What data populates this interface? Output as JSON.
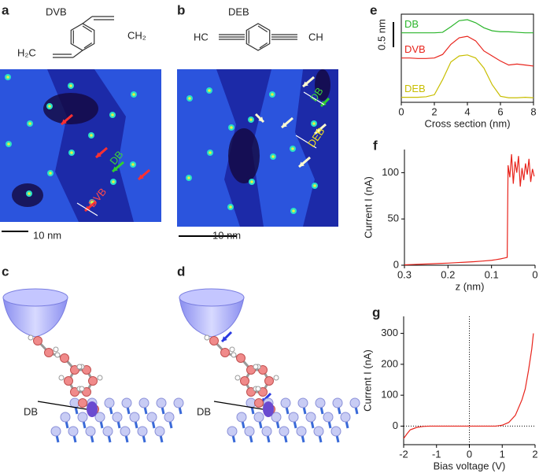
{
  "panels": {
    "a": {
      "letter": "a",
      "label": "DVB",
      "formula_left": "H₂C",
      "formula_right": "CH₂",
      "scale_bar": "10 nm",
      "annotations": [
        "DB",
        "DVB"
      ]
    },
    "b": {
      "letter": "b",
      "label": "DEB",
      "formula_left": "HC",
      "formula_right": "CH",
      "scale_bar": "10 nm",
      "annotations": [
        "DB",
        "DEB"
      ]
    },
    "c": {
      "letter": "c",
      "annotation": "DB"
    },
    "d": {
      "letter": "d",
      "annotation": "DB"
    }
  },
  "chart_data": [
    {
      "type": "line",
      "panel": "e",
      "xlabel": "Cross section (nm)",
      "frame": true,
      "scale_bar": {
        "value": 0.5,
        "label": "0.5 nm"
      },
      "x": [
        0,
        0.5,
        1,
        1.5,
        2,
        2.5,
        3,
        3.5,
        4,
        4.5,
        5,
        5.5,
        6,
        6.5,
        7,
        7.5,
        8
      ],
      "xlim": [
        0,
        8
      ],
      "xticks": [
        0,
        2,
        4,
        6,
        8
      ],
      "ylim": [
        0,
        1.75
      ],
      "series": [
        {
          "name": "DB",
          "color": "#2bb52b",
          "values": [
            1.38,
            1.38,
            1.38,
            1.38,
            1.38,
            1.39,
            1.5,
            1.62,
            1.64,
            1.58,
            1.48,
            1.42,
            1.4,
            1.4,
            1.39,
            1.38,
            1.38
          ]
        },
        {
          "name": "DVB",
          "color": "#e8241c",
          "values": [
            0.88,
            0.88,
            0.87,
            0.87,
            0.88,
            0.95,
            1.15,
            1.28,
            1.31,
            1.22,
            1.02,
            0.92,
            0.82,
            0.74,
            0.76,
            0.74,
            0.72
          ]
        },
        {
          "name": "DEB",
          "color": "#c8be00",
          "values": [
            0.1,
            0.1,
            0.1,
            0.11,
            0.15,
            0.45,
            0.8,
            0.92,
            0.94,
            0.88,
            0.68,
            0.35,
            0.12,
            0.09,
            0.09,
            0.1,
            0.09
          ]
        }
      ]
    },
    {
      "type": "line",
      "panel": "f",
      "xlabel": "z (nm)",
      "ylabel": "Current I (nA)",
      "color": "#e8241c",
      "x": [
        0.3,
        0.28,
        0.26,
        0.24,
        0.22,
        0.2,
        0.18,
        0.16,
        0.14,
        0.12,
        0.1,
        0.09,
        0.08,
        0.07,
        0.064,
        0.062,
        0.058,
        0.054,
        0.05,
        0.046,
        0.042,
        0.038,
        0.034,
        0.03,
        0.026,
        0.022,
        0.018,
        0.014,
        0.01,
        0.006,
        0.002
      ],
      "values": [
        0.4,
        0.8,
        1.2,
        1.5,
        1.9,
        2.3,
        2.8,
        3.3,
        3.8,
        4.5,
        5.3,
        6,
        6.8,
        7.8,
        8.5,
        108,
        95,
        120,
        88,
        112,
        100,
        118,
        85,
        105,
        92,
        110,
        98,
        115,
        90,
        104,
        96
      ],
      "xlim": [
        0.3,
        0
      ],
      "xticks": [
        0.3,
        0.2,
        0.1,
        0
      ],
      "ylim": [
        0,
        125
      ],
      "yticks": [
        0,
        50,
        100
      ]
    },
    {
      "type": "line",
      "panel": "g",
      "xlabel": "Bias voltage (V)",
      "ylabel": "Current I (nA)",
      "color": "#e8241c",
      "zero_lines": true,
      "x": [
        -2,
        -1.9,
        -1.8,
        -1.6,
        -1.4,
        -1.2,
        -1,
        0,
        0.8,
        1,
        1.2,
        1.4,
        1.6,
        1.7,
        1.8,
        1.9,
        1.95
      ],
      "values": [
        -40,
        -25,
        -12,
        -4,
        -1,
        0,
        0,
        0,
        0,
        3,
        12,
        35,
        85,
        120,
        180,
        250,
        300
      ],
      "xlim": [
        -2,
        2
      ],
      "xticks": [
        -2,
        -1,
        0,
        1,
        2
      ],
      "ylim": [
        -60,
        355
      ],
      "yticks": [
        0,
        100,
        200,
        300
      ]
    }
  ]
}
